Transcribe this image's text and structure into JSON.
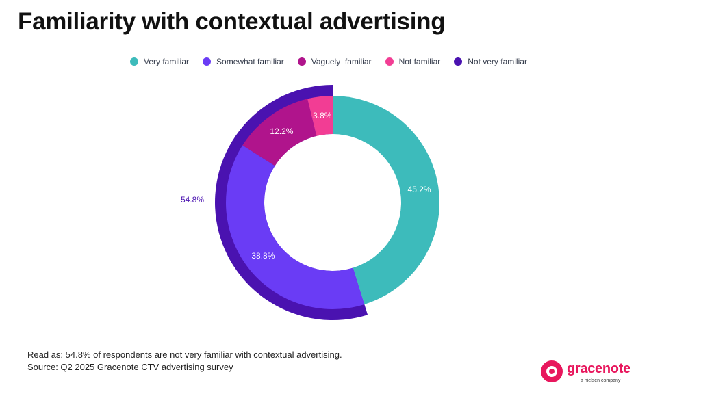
{
  "title": "Familiarity with contextual advertising",
  "legend": [
    {
      "label": "Very familiar",
      "color": "#3dbbbb"
    },
    {
      "label": "Somewhat familiar",
      "color": "#6a3cf5"
    },
    {
      "label": "Vaguely  familiar",
      "color": "#b0148c"
    },
    {
      "label": "Not familiar",
      "color": "#f23d94"
    },
    {
      "label": "Not very familiar",
      "color": "#4a12b0"
    }
  ],
  "chart_data": {
    "type": "pie",
    "variant": "donut",
    "inner_ring": {
      "categories": [
        "Very familiar",
        "Somewhat familiar",
        "Vaguely  familiar",
        "Not familiar"
      ],
      "values": [
        45.2,
        38.8,
        12.2,
        3.8
      ],
      "labels": [
        "45.2%",
        "38.8%",
        "12.2%",
        "3.8%"
      ],
      "colors": [
        "#3dbbbb",
        "#6a3cf5",
        "#b0148c",
        "#f23d94"
      ]
    },
    "outer_arc": {
      "category": "Not very familiar",
      "value": 54.8,
      "label": "54.8%",
      "color": "#4a12b0"
    },
    "legend_position": "top"
  },
  "footnote": {
    "line1": "Read as: 54.8% of respondents are not very familiar with contextual advertising.",
    "line2": "Source: Q2 2025 Gracenote CTV advertising survey"
  },
  "logo": {
    "name": "gracenote",
    "tagline": "a nielsen company"
  }
}
